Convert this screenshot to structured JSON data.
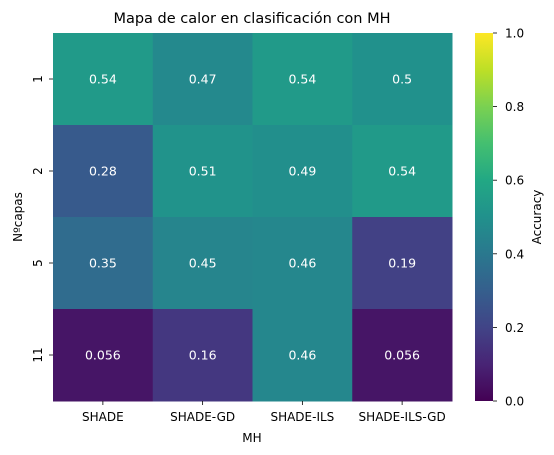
{
  "chart_data": {
    "type": "heatmap",
    "title": "Mapa de calor en clasificación con MH",
    "xlabel": "MH",
    "ylabel": "Nºcapas",
    "x_categories": [
      "SHADE",
      "SHADE-GD",
      "SHADE-ILS",
      "SHADE-ILS-GD"
    ],
    "y_categories": [
      "1",
      "2",
      "5",
      "11"
    ],
    "values": [
      [
        0.54,
        0.47,
        0.54,
        0.5
      ],
      [
        0.28,
        0.51,
        0.49,
        0.54
      ],
      [
        0.35,
        0.45,
        0.46,
        0.19
      ],
      [
        0.056,
        0.16,
        0.46,
        0.056
      ]
    ],
    "cell_labels": [
      [
        "0.54",
        "0.47",
        "0.54",
        "0.5"
      ],
      [
        "0.28",
        "0.51",
        "0.49",
        "0.54"
      ],
      [
        "0.35",
        "0.45",
        "0.46",
        "0.19"
      ],
      [
        "0.056",
        "0.16",
        "0.46",
        "0.056"
      ]
    ],
    "colormap": "viridis",
    "colorbar": {
      "label": "Accuracy",
      "range": [
        0.0,
        1.0
      ],
      "ticks": [
        "0.0",
        "0.2",
        "0.4",
        "0.6",
        "0.8",
        "1.0"
      ]
    }
  }
}
